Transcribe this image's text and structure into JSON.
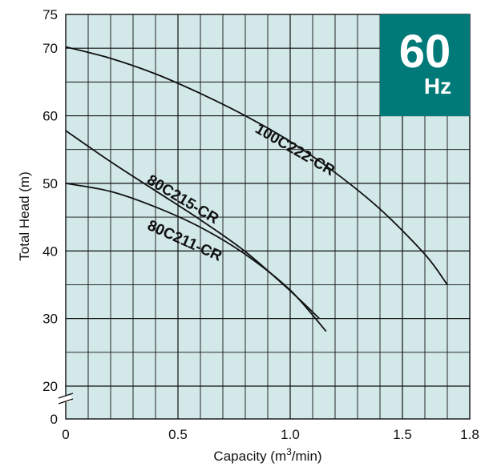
{
  "chart_data": {
    "type": "line",
    "xlabel_main": "Capacity (m",
    "xlabel_sup": "3",
    "xlabel_tail": "/min)",
    "ylabel": "Total Head (m)",
    "xlim": [
      0,
      1.8
    ],
    "ylim_display": [
      0,
      75
    ],
    "y_axis_break": true,
    "grid": true,
    "x_ticks": [
      "0",
      "0.5",
      "1.0",
      "1.5",
      "1.8"
    ],
    "y_ticks": [
      "75",
      "70",
      "60",
      "50",
      "40",
      "30",
      "20",
      "0"
    ],
    "badge": {
      "value": "60",
      "unit": "Hz",
      "color": "#007A78"
    },
    "plot_bg": "#D3E8E9",
    "series": [
      {
        "name": "100C222-CR",
        "x": [
          0,
          0.2,
          0.4,
          0.6,
          0.8,
          1.0,
          1.2,
          1.4,
          1.6,
          1.7
        ],
        "y": [
          70.2,
          68.5,
          66.2,
          63.3,
          60.0,
          56.2,
          51.6,
          46.2,
          39.5,
          35.0
        ]
      },
      {
        "name": "80C215-CR",
        "x": [
          0,
          0.2,
          0.4,
          0.6,
          0.8,
          1.0,
          1.13
        ],
        "y": [
          57.8,
          53.2,
          48.9,
          44.6,
          39.9,
          34.1,
          30.0
        ]
      },
      {
        "name": "80C211-CR",
        "x": [
          0,
          0.2,
          0.4,
          0.6,
          0.8,
          1.0,
          1.16
        ],
        "y": [
          50.0,
          48.8,
          46.5,
          43.5,
          39.5,
          34.2,
          28.1
        ]
      }
    ]
  }
}
